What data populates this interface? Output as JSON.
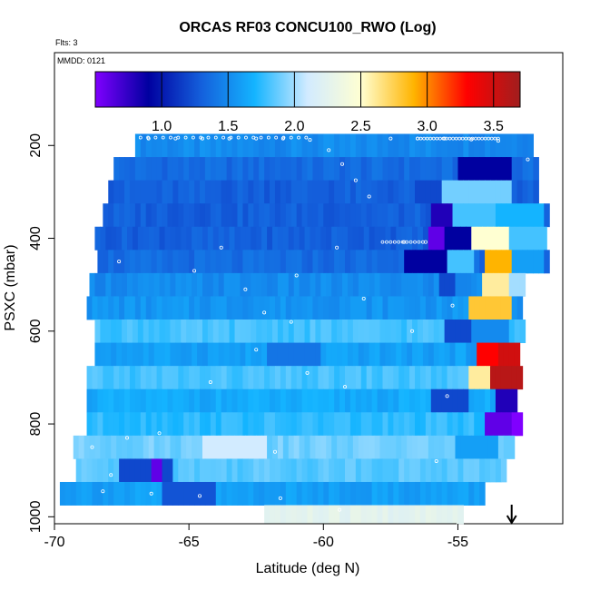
{
  "chart_data": {
    "type": "heatmap",
    "title": "ORCAS RF03 CONCU100_RWO (Log)",
    "annotations": {
      "flts": "Flts: 3",
      "mmdd": "MMDD: 0121"
    },
    "xlabel": "Latitude (deg N)",
    "ylabel": "PSXC (mbar)",
    "xlim": [
      -70,
      -51.1
    ],
    "ylim": [
      1015,
      0
    ],
    "x_ticks": [
      -70,
      -65,
      -60,
      -55
    ],
    "x_tick_labels": [
      "-70",
      "-65",
      "-60",
      "-55"
    ],
    "y_ticks": [
      200,
      400,
      600,
      800,
      1000
    ],
    "y_tick_labels": [
      "200",
      "400",
      "600",
      "800",
      "1000"
    ],
    "colorbar": {
      "range": [
        0.5,
        3.7
      ],
      "ticks": [
        1.0,
        1.5,
        2.0,
        2.5,
        3.0,
        3.5
      ],
      "tick_labels": [
        "1.0",
        "1.5",
        "2.0",
        "2.5",
        "3.0",
        "3.5"
      ],
      "colors": [
        "#8000ff",
        "#0000a0",
        "#1460dc",
        "#14b4ff",
        "#d2ebff",
        "#ffffd2",
        "#ffb400",
        "#ff0000",
        "#a01e1e"
      ]
    },
    "pressure_bands": [
      {
        "p_top": 175,
        "p_bottom": 225,
        "lat_start": -67,
        "lat_end": -52.1,
        "base": 1.5,
        "anomalies": []
      },
      {
        "p_top": 225,
        "p_bottom": 275,
        "lat_start": -67.8,
        "lat_end": -52,
        "base": 1.35,
        "anomalies": [
          {
            "from": -55,
            "to": -53,
            "value": 0.9
          }
        ]
      },
      {
        "p_top": 275,
        "p_bottom": 325,
        "lat_start": -68,
        "lat_end": -52,
        "base": 1.3,
        "anomalies": [
          {
            "from": -56.5,
            "to": -55.5,
            "value": 1.2
          },
          {
            "from": -55.5,
            "to": -53,
            "value": 1.9
          }
        ]
      },
      {
        "p_top": 325,
        "p_bottom": 375,
        "lat_start": -68.2,
        "lat_end": -51.7,
        "base": 1.3,
        "anomalies": [
          {
            "from": -56,
            "to": -55.2,
            "value": 0.8
          },
          {
            "from": -55.2,
            "to": -53.5,
            "value": 1.8
          },
          {
            "from": -53.5,
            "to": -51.7,
            "value": 1.7
          }
        ]
      },
      {
        "p_top": 375,
        "p_bottom": 425,
        "lat_start": -68.5,
        "lat_end": -51.7,
        "base": 1.3,
        "anomalies": [
          {
            "from": -56,
            "to": -55.5,
            "value": 0.6
          },
          {
            "from": -55.5,
            "to": -54.5,
            "value": 0.9
          },
          {
            "from": -54.5,
            "to": -53,
            "value": 2.5
          },
          {
            "from": -53,
            "to": -51.7,
            "value": 1.8
          }
        ]
      },
      {
        "p_top": 425,
        "p_bottom": 475,
        "lat_start": -68.4,
        "lat_end": -51.7,
        "base": 1.35,
        "anomalies": [
          {
            "from": -57,
            "to": -55.5,
            "value": 0.9
          },
          {
            "from": -55.5,
            "to": -54.5,
            "value": 1.8
          },
          {
            "from": -54,
            "to": -53,
            "value": 2.9
          },
          {
            "from": -53,
            "to": -51.7,
            "value": 1.6
          }
        ]
      },
      {
        "p_top": 475,
        "p_bottom": 525,
        "lat_start": -68.7,
        "lat_end": -52.5,
        "base": 1.5,
        "anomalies": [
          {
            "from": -55.8,
            "to": -55,
            "value": 1.2
          },
          {
            "from": -54,
            "to": -53,
            "value": 2.6
          },
          {
            "from": -53,
            "to": -52.5,
            "value": 2.0
          }
        ]
      },
      {
        "p_top": 525,
        "p_bottom": 575,
        "lat_start": -68.8,
        "lat_end": -52.5,
        "base": 1.55,
        "anomalies": [
          {
            "from": -54.5,
            "to": -53,
            "value": 2.8
          }
        ]
      },
      {
        "p_top": 575,
        "p_bottom": 625,
        "lat_start": -68.5,
        "lat_end": -52.5,
        "base": 1.8,
        "anomalies": [
          {
            "from": -55.5,
            "to": -54.5,
            "value": 1.2
          },
          {
            "from": -54.5,
            "to": -53,
            "value": 1.5
          }
        ]
      },
      {
        "p_top": 625,
        "p_bottom": 675,
        "lat_start": -68.5,
        "lat_end": -52.6,
        "base": 1.6,
        "anomalies": [
          {
            "from": -62,
            "to": -60,
            "value": 1.4
          },
          {
            "from": -54.3,
            "to": -53.5,
            "value": 3.3
          },
          {
            "from": -53.5,
            "to": -52.6,
            "value": 3.5
          }
        ]
      },
      {
        "p_top": 675,
        "p_bottom": 725,
        "lat_start": -68.8,
        "lat_end": -52.5,
        "base": 1.8,
        "anomalies": [
          {
            "from": -54.5,
            "to": -53.8,
            "value": 2.6
          },
          {
            "from": -53.8,
            "to": -52.5,
            "value": 3.6
          }
        ]
      },
      {
        "p_top": 725,
        "p_bottom": 775,
        "lat_start": -68.8,
        "lat_end": -52.7,
        "base": 1.65,
        "anomalies": [
          {
            "from": -56,
            "to": -54.5,
            "value": 1.2
          },
          {
            "from": -53.5,
            "to": -52.7,
            "value": 0.8
          }
        ]
      },
      {
        "p_top": 775,
        "p_bottom": 825,
        "lat_start": -68.8,
        "lat_end": -52.5,
        "base": 1.75,
        "anomalies": [
          {
            "from": -54,
            "to": -53,
            "value": 0.6
          },
          {
            "from": -53,
            "to": -52.5,
            "value": 0.5
          }
        ]
      },
      {
        "p_top": 825,
        "p_bottom": 875,
        "lat_start": -69.3,
        "lat_end": -52.9,
        "base": 1.9,
        "anomalies": [
          {
            "from": -64.5,
            "to": -62,
            "value": 2.1
          },
          {
            "from": -55,
            "to": -53.5,
            "value": 1.6
          }
        ]
      },
      {
        "p_top": 875,
        "p_bottom": 925,
        "lat_start": -69.2,
        "lat_end": -53.2,
        "base": 1.85,
        "anomalies": [
          {
            "from": -67.5,
            "to": -65.5,
            "value": 1.2
          },
          {
            "from": -66.4,
            "to": -65.9,
            "value": 0.6
          }
        ]
      },
      {
        "p_top": 925,
        "p_bottom": 975,
        "lat_start": -69.8,
        "lat_end": -54,
        "base": 1.6,
        "anomalies": [
          {
            "from": -66,
            "to": -64,
            "value": 1.25
          }
        ]
      },
      {
        "p_top": 975,
        "p_bottom": 1015,
        "lat_start": -62.2,
        "lat_end": -54.9,
        "base": 2.25,
        "anomalies": []
      }
    ],
    "flight_track_points": [
      {
        "lat": -66.5,
        "p": 185
      },
      {
        "lat": -65.5,
        "p": 185
      },
      {
        "lat": -64.5,
        "p": 185
      },
      {
        "lat": -63.5,
        "p": 185
      },
      {
        "lat": -62.5,
        "p": 185
      },
      {
        "lat": -61.5,
        "p": 185
      },
      {
        "lat": -60.5,
        "p": 188
      },
      {
        "lat": -59.8,
        "p": 210
      },
      {
        "lat": -59.3,
        "p": 240
      },
      {
        "lat": -58.8,
        "p": 275
      },
      {
        "lat": -58.3,
        "p": 310
      },
      {
        "lat": -57.5,
        "p": 185
      },
      {
        "lat": -56.5,
        "p": 185
      },
      {
        "lat": -55.5,
        "p": 185
      },
      {
        "lat": -54.5,
        "p": 187
      },
      {
        "lat": -53.5,
        "p": 190
      },
      {
        "lat": -52.4,
        "p": 230
      },
      {
        "lat": -57,
        "p": 408
      },
      {
        "lat": -56.2,
        "p": 408
      },
      {
        "lat": -59.5,
        "p": 420
      },
      {
        "lat": -63.8,
        "p": 420
      },
      {
        "lat": -67.6,
        "p": 450
      },
      {
        "lat": -64.8,
        "p": 470
      },
      {
        "lat": -61,
        "p": 480
      },
      {
        "lat": -62.9,
        "p": 510
      },
      {
        "lat": -58.5,
        "p": 530
      },
      {
        "lat": -55.2,
        "p": 545
      },
      {
        "lat": -62.2,
        "p": 560
      },
      {
        "lat": -61.2,
        "p": 580
      },
      {
        "lat": -56.7,
        "p": 600
      },
      {
        "lat": -62.5,
        "p": 640
      },
      {
        "lat": -60.6,
        "p": 690
      },
      {
        "lat": -64.2,
        "p": 710
      },
      {
        "lat": -59.2,
        "p": 720
      },
      {
        "lat": -55.4,
        "p": 740
      },
      {
        "lat": -66.1,
        "p": 820
      },
      {
        "lat": -67.3,
        "p": 830
      },
      {
        "lat": -68.6,
        "p": 850
      },
      {
        "lat": -61.8,
        "p": 860
      },
      {
        "lat": -55.8,
        "p": 880
      },
      {
        "lat": -67.9,
        "p": 910
      },
      {
        "lat": -68.2,
        "p": 945
      },
      {
        "lat": -66.4,
        "p": 950
      },
      {
        "lat": -64.6,
        "p": 955
      },
      {
        "lat": -61.6,
        "p": 960
      },
      {
        "lat": -59.4,
        "p": 985
      }
    ],
    "arrow_lat": -53
  }
}
